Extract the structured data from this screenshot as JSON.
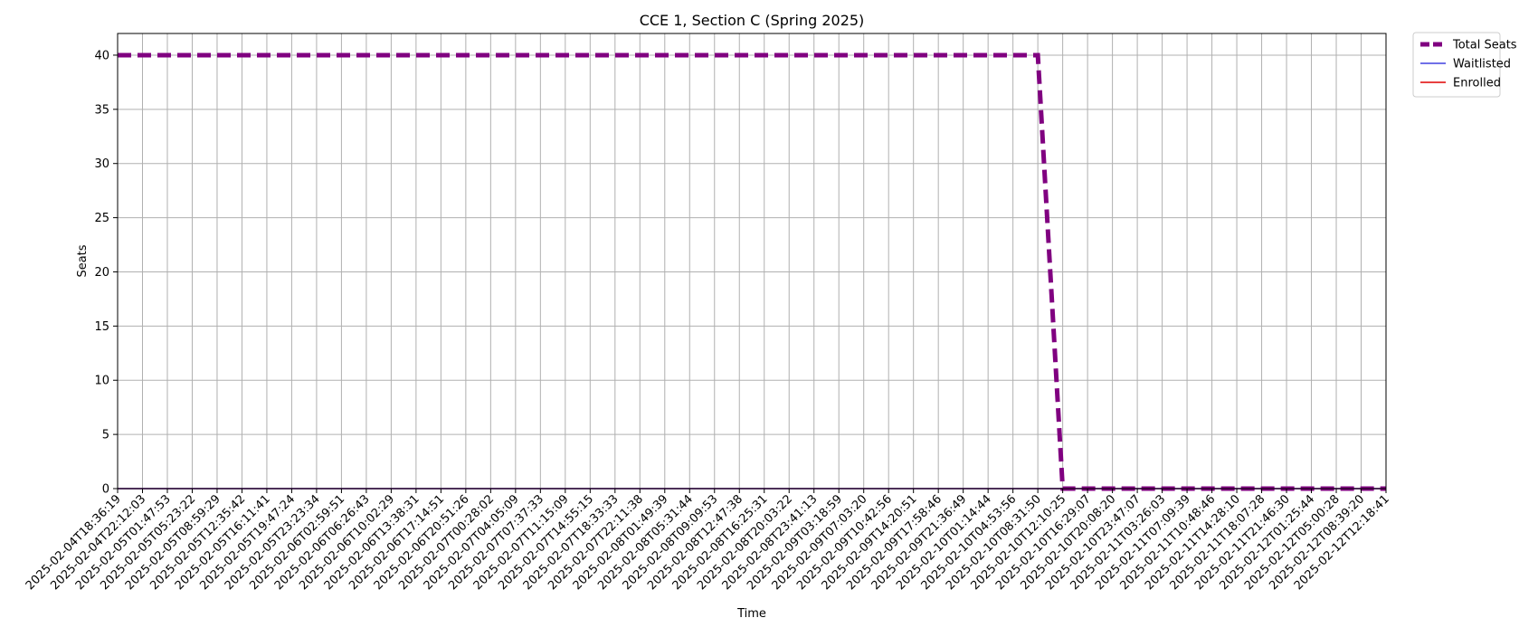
{
  "chart_data": {
    "type": "line",
    "title": "CCE 1, Section C (Spring 2025)",
    "xlabel": "Time",
    "ylabel": "Seats",
    "ylim": [
      0,
      42
    ],
    "yticks": [
      0,
      5,
      10,
      15,
      20,
      25,
      30,
      35,
      40
    ],
    "grid": true,
    "legend_position": "outside-top-right",
    "x": [
      "2025-02-04T18:36:19",
      "2025-02-04T22:12:03",
      "2025-02-05T01:47:53",
      "2025-02-05T05:23:22",
      "2025-02-05T08:59:29",
      "2025-02-05T12:35:42",
      "2025-02-05T16:11:41",
      "2025-02-05T19:47:24",
      "2025-02-05T23:23:34",
      "2025-02-06T02:59:51",
      "2025-02-06T06:26:43",
      "2025-02-06T10:02:29",
      "2025-02-06T13:38:31",
      "2025-02-06T17:14:51",
      "2025-02-06T20:51:26",
      "2025-02-07T00:28:02",
      "2025-02-07T04:05:09",
      "2025-02-07T07:37:33",
      "2025-02-07T11:15:09",
      "2025-02-07T14:55:15",
      "2025-02-07T18:33:33",
      "2025-02-07T22:11:38",
      "2025-02-08T01:49:39",
      "2025-02-08T05:31:44",
      "2025-02-08T09:09:53",
      "2025-02-08T12:47:38",
      "2025-02-08T16:25:31",
      "2025-02-08T20:03:22",
      "2025-02-08T23:41:13",
      "2025-02-09T03:18:59",
      "2025-02-09T07:03:20",
      "2025-02-09T10:42:56",
      "2025-02-09T14:20:51",
      "2025-02-09T17:58:46",
      "2025-02-09T21:36:49",
      "2025-02-10T01:14:44",
      "2025-02-10T04:53:56",
      "2025-02-10T08:31:50",
      "2025-02-10T12:10:25",
      "2025-02-10T16:29:07",
      "2025-02-10T20:08:20",
      "2025-02-10T23:47:07",
      "2025-02-11T03:26:03",
      "2025-02-11T07:09:39",
      "2025-02-11T10:48:46",
      "2025-02-11T14:28:10",
      "2025-02-11T18:07:28",
      "2025-02-11T21:46:30",
      "2025-02-12T01:25:44",
      "2025-02-12T05:00:28",
      "2025-02-12T08:39:20",
      "2025-02-12T12:18:41"
    ],
    "series": [
      {
        "name": "Total Seats",
        "color": "#800080",
        "style": "dashed",
        "values": [
          40,
          40,
          40,
          40,
          40,
          40,
          40,
          40,
          40,
          40,
          40,
          40,
          40,
          40,
          40,
          40,
          40,
          40,
          40,
          40,
          40,
          40,
          40,
          40,
          40,
          40,
          40,
          40,
          40,
          40,
          40,
          40,
          40,
          40,
          40,
          40,
          40,
          40,
          0,
          0,
          0,
          0,
          0,
          0,
          0,
          0,
          0,
          0,
          0,
          0,
          0,
          0
        ]
      },
      {
        "name": "Waitlisted",
        "color": "#4040e0",
        "style": "solid",
        "values": [
          0,
          0,
          0,
          0,
          0,
          0,
          0,
          0,
          0,
          0,
          0,
          0,
          0,
          0,
          0,
          0,
          0,
          0,
          0,
          0,
          0,
          0,
          0,
          0,
          0,
          0,
          0,
          0,
          0,
          0,
          0,
          0,
          0,
          0,
          0,
          0,
          0,
          0,
          0,
          0,
          0,
          0,
          0,
          0,
          0,
          0,
          0,
          0,
          0,
          0,
          0,
          0
        ]
      },
      {
        "name": "Enrolled",
        "color": "#e00000",
        "style": "solid",
        "values": [
          0,
          0,
          0,
          0,
          0,
          0,
          0,
          0,
          0,
          0,
          0,
          0,
          0,
          0,
          0,
          0,
          0,
          0,
          0,
          0,
          0,
          0,
          0,
          0,
          0,
          0,
          0,
          0,
          0,
          0,
          0,
          0,
          0,
          0,
          0,
          0,
          0,
          0,
          0,
          0,
          0,
          0,
          0,
          0,
          0,
          0,
          0,
          0,
          0,
          0,
          0,
          0
        ]
      }
    ]
  }
}
